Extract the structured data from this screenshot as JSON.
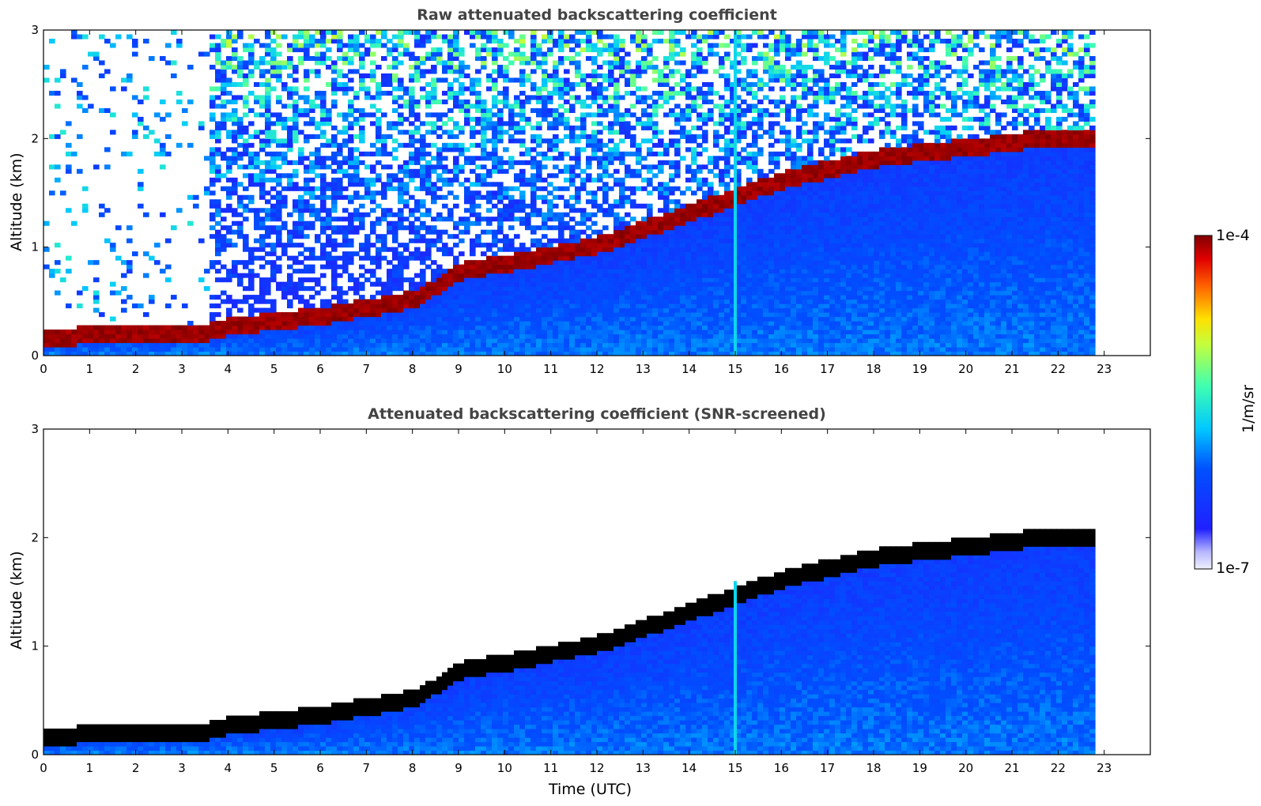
{
  "chart_data": [
    {
      "type": "heatmap",
      "title": "Raw attenuated backscattering coefficient",
      "xlabel": "",
      "ylabel": "Altitude (km)",
      "xlim": [
        0,
        24
      ],
      "ylim": [
        0,
        3
      ],
      "xticks": [
        0,
        1,
        2,
        3,
        4,
        5,
        6,
        7,
        8,
        9,
        10,
        11,
        12,
        13,
        14,
        15,
        16,
        17,
        18,
        19,
        20,
        21,
        22,
        23
      ],
      "yticks": [
        0,
        1,
        2,
        3
      ],
      "data_end_time": 22.8,
      "features": {
        "surface_layer_top_km": [
          [
            0,
            0.15
          ],
          [
            3.5,
            0.2
          ],
          [
            4,
            0.25
          ],
          [
            6,
            0.35
          ],
          [
            8,
            0.5
          ],
          [
            9,
            0.75
          ],
          [
            12,
            1.0
          ],
          [
            14,
            1.3
          ],
          [
            16,
            1.6
          ],
          [
            18,
            1.8
          ],
          [
            20,
            1.9
          ],
          [
            22,
            2.0
          ],
          [
            22.8,
            2.0
          ]
        ],
        "noisy_column_time": 15.0
      }
    },
    {
      "type": "heatmap",
      "title": "Attenuated backscattering coefficient (SNR-screened)",
      "xlabel": "Time (UTC)",
      "ylabel": "Altitude (km)",
      "xlim": [
        0,
        24
      ],
      "ylim": [
        0,
        3
      ],
      "xticks": [
        0,
        1,
        2,
        3,
        4,
        5,
        6,
        7,
        8,
        9,
        10,
        11,
        12,
        13,
        14,
        15,
        16,
        17,
        18,
        19,
        20,
        21,
        22,
        23
      ],
      "yticks": [
        0,
        1,
        2,
        3
      ],
      "data_end_time": 22.8
    }
  ],
  "colorbar": {
    "max_label": "1e-4",
    "min_label": "1e-7",
    "unit_label": "1/m/sr"
  }
}
